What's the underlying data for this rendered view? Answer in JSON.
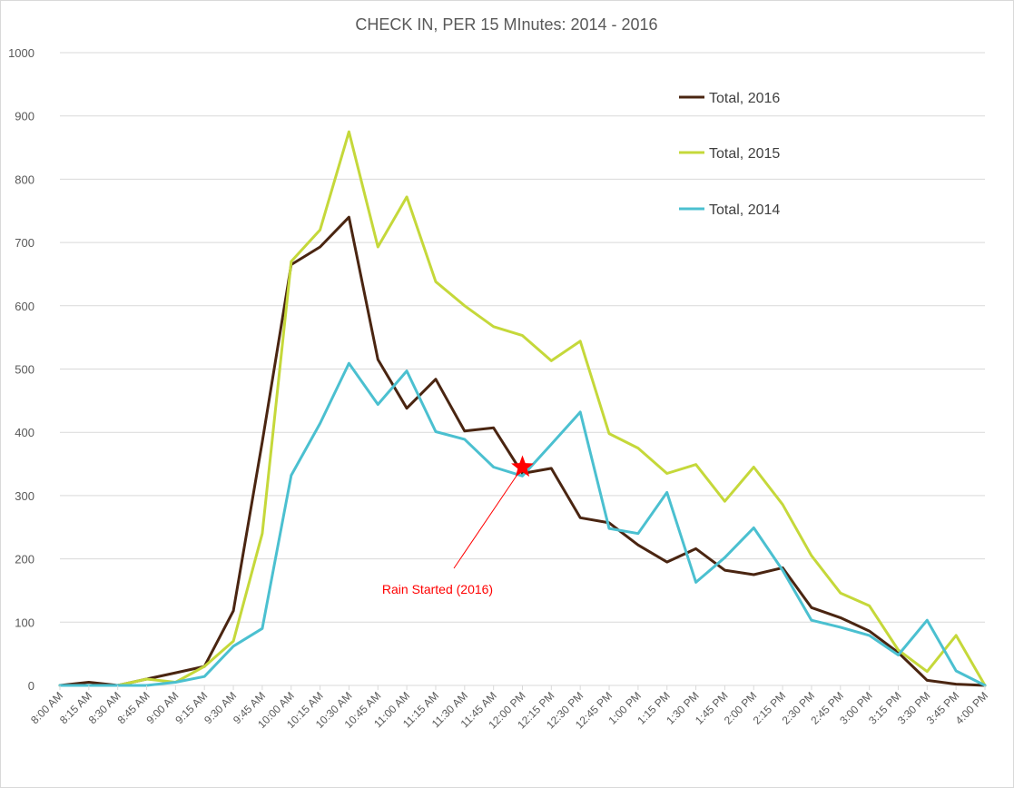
{
  "chart_data": {
    "type": "line",
    "title": "CHECK IN, PER 15 MInutes: 2014 - 2016",
    "xlabel": "",
    "ylabel": "",
    "ylim": [
      0,
      1000
    ],
    "y_ticks": [
      0,
      100,
      200,
      300,
      400,
      500,
      600,
      700,
      800,
      900,
      1000
    ],
    "grid": true,
    "legend_placement": "top-right",
    "categories": [
      "8:00 AM",
      "8:15 AM",
      "8:30 AM",
      "8:45 AM",
      "9:00 AM",
      "9:15 AM",
      "9:30 AM",
      "9:45 AM",
      "10:00 AM",
      "10:15 AM",
      "10:30 AM",
      "10:45 AM",
      "11:00 AM",
      "11:15 AM",
      "11:30 AM",
      "11:45 AM",
      "12:00 PM",
      "12:15 PM",
      "12:30 PM",
      "12:45 PM",
      "1:00 PM",
      "1:15 PM",
      "1:30 PM",
      "1:45 PM",
      "2:00 PM",
      "2:15 PM",
      "2:30 PM",
      "2:45 PM",
      "3:00 PM",
      "3:15 PM",
      "3:30 PM",
      "3:45 PM",
      "4:00 PM"
    ],
    "series": [
      {
        "name": "Total, 2016",
        "color": "#4a2511",
        "values": [
          0,
          5,
          0,
          10,
          20,
          30,
          118,
          385,
          665,
          693,
          740,
          515,
          438,
          484,
          402,
          407,
          335,
          343,
          265,
          257,
          222,
          195,
          216,
          182,
          175,
          186,
          123,
          107,
          86,
          52,
          8,
          2,
          0
        ]
      },
      {
        "name": "Total, 2015",
        "color": "#c5d83a",
        "values": [
          0,
          0,
          0,
          10,
          5,
          30,
          70,
          240,
          670,
          720,
          875,
          693,
          772,
          638,
          600,
          567,
          553,
          513,
          544,
          398,
          375,
          335,
          349,
          291,
          345,
          286,
          205,
          146,
          126,
          56,
          22,
          79,
          0
        ]
      },
      {
        "name": "Total, 2014",
        "color": "#4bc0d0",
        "values": [
          0,
          0,
          0,
          0,
          5,
          14,
          62,
          90,
          332,
          414,
          509,
          444,
          497,
          401,
          389,
          345,
          331,
          381,
          432,
          248,
          240,
          305,
          163,
          202,
          249,
          182,
          103,
          92,
          79,
          48,
          103,
          23,
          0
        ]
      }
    ],
    "annotations": [
      {
        "text": "Rain Started (2016)",
        "x": "12:00 PM",
        "y": 335,
        "marker": "star",
        "color": "#ff0000"
      }
    ]
  }
}
